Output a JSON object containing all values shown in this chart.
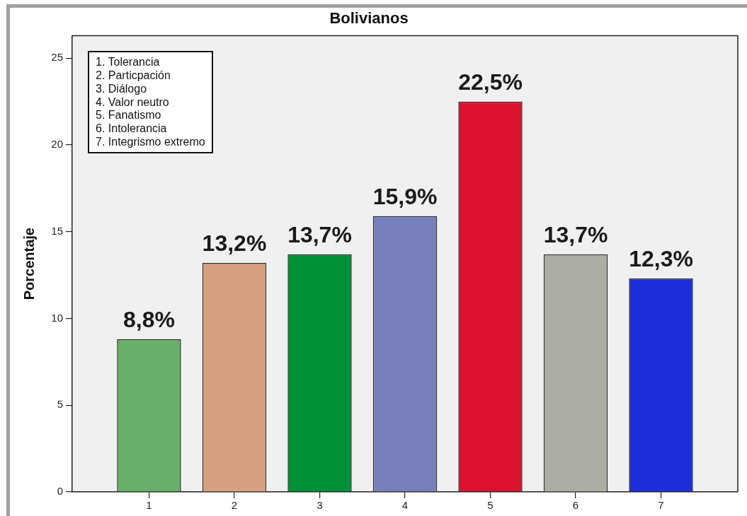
{
  "chart_data": {
    "type": "bar",
    "title": "Bolivianos",
    "ylabel": "Porcentaje",
    "categories": [
      "1",
      "2",
      "3",
      "4",
      "5",
      "6",
      "7"
    ],
    "values": [
      8.8,
      13.2,
      13.7,
      15.9,
      22.5,
      13.7,
      12.3
    ],
    "colors": [
      "#6aaf69",
      "#d6a07e",
      "#009036",
      "#7880bc",
      "#dc1230",
      "#aeada4",
      "#1c2fdc"
    ],
    "value_labels": [
      "8,8%",
      "13,2%",
      "13,7%",
      "15,9%",
      "22,5%",
      "13,7%",
      "12,3%"
    ],
    "ylim": [
      0,
      26.3
    ],
    "yticks": [
      0,
      5,
      10,
      15,
      20,
      25
    ],
    "annotations": [
      "1. Tolerancia",
      "2. Particpación",
      "3. Diálogo",
      "4. Valor neutro",
      "5. Fanatismo",
      "6. Intolerancia",
      "7. Integrismo extremo"
    ]
  }
}
